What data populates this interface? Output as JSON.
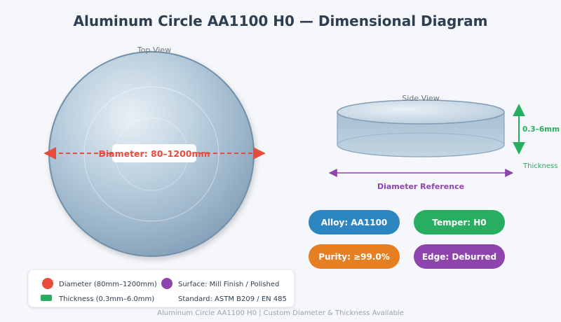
{
  "title": "Aluminum Circle AA1100 H0 — Dimensional Diagram",
  "top_view": {
    "label": "Top View",
    "diameter_label": "Diameter: 80–1200mm"
  },
  "side_view": {
    "label": "Side View",
    "thickness_value": "0.3–6mm",
    "thickness_label": "Thickness",
    "diameter_reference": "Diameter Reference"
  },
  "badges": [
    {
      "text": "Alloy: AA1100",
      "color": "#2e86c1"
    },
    {
      "text": "Temper: H0",
      "color": "#27ae60"
    },
    {
      "text": "Purity: ≥99.0%",
      "color": "#e67e22"
    },
    {
      "text": "Edge: Deburred",
      "color": "#8e44ad"
    }
  ],
  "legend": {
    "diameter": "Diameter (80mm–1200mm)",
    "thickness": "Thickness (0.3mm–6.0mm)",
    "surface": "Surface: Mill Finish / Polished",
    "standard": "Standard: ASTM B209 / EN 485"
  },
  "colors": {
    "diameter": "#e74c3c",
    "thickness": "#27ae60",
    "surface": "#8e44ad"
  },
  "footer": "Aluminum Circle AA1100 H0 | Custom Diameter & Thickness Available"
}
